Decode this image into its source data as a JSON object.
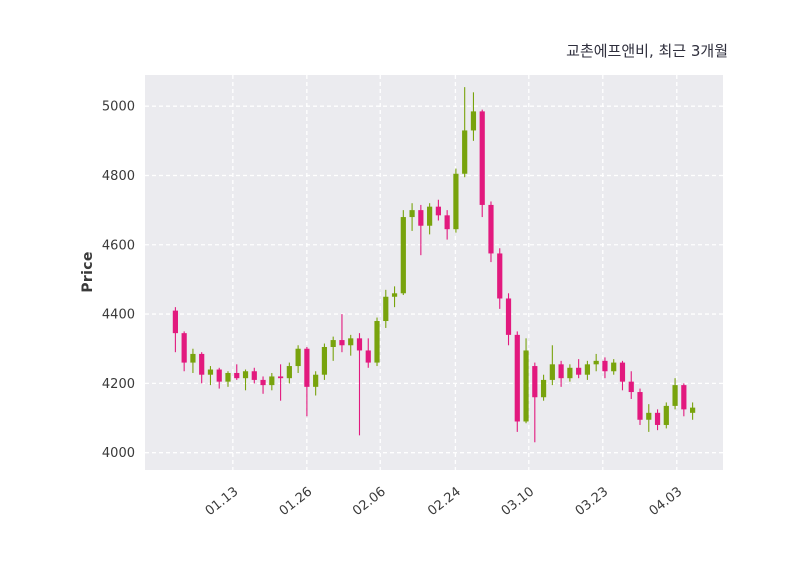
{
  "chart_data": {
    "type": "candlestick",
    "title": "교촌에프앤비, 최근 3개월",
    "ylabel": "Price",
    "ylim": [
      3950,
      5090
    ],
    "yticks": [
      4000,
      4200,
      4400,
      4600,
      4800,
      5000
    ],
    "xticks": [
      {
        "label": "01.13",
        "pos": 0.152
      },
      {
        "label": "01.26",
        "pos": 0.28
      },
      {
        "label": "02.06",
        "pos": 0.407
      },
      {
        "label": "02.24",
        "pos": 0.537
      },
      {
        "label": "03.10",
        "pos": 0.664
      },
      {
        "label": "03.23",
        "pos": 0.792
      },
      {
        "label": "04.03",
        "pos": 0.92
      }
    ],
    "grid": "dashed",
    "legend": "none",
    "colors": {
      "up": "#78A30D",
      "down": "#E2197E",
      "plot_bg": "#EBEBEF",
      "grid": "#FFFFFF",
      "tick_text": "#3A3A3A",
      "title_text": "#2F2F3D"
    },
    "candles_format": [
      "open",
      "high",
      "low",
      "close"
    ],
    "candles": [
      [
        4410,
        4420,
        4290,
        4345
      ],
      [
        4345,
        4350,
        4235,
        4260
      ],
      [
        4260,
        4300,
        4230,
        4285
      ],
      [
        4285,
        4290,
        4200,
        4225
      ],
      [
        4225,
        4250,
        4195,
        4240
      ],
      [
        4240,
        4245,
        4185,
        4205
      ],
      [
        4205,
        4235,
        4190,
        4230
      ],
      [
        4230,
        4255,
        4210,
        4215
      ],
      [
        4215,
        4240,
        4180,
        4235
      ],
      [
        4235,
        4245,
        4200,
        4210
      ],
      [
        4210,
        4220,
        4170,
        4195
      ],
      [
        4195,
        4230,
        4180,
        4220
      ],
      [
        4220,
        4255,
        4150,
        4215
      ],
      [
        4215,
        4260,
        4200,
        4250
      ],
      [
        4250,
        4310,
        4230,
        4300
      ],
      [
        4300,
        4305,
        4105,
        4190
      ],
      [
        4190,
        4235,
        4165,
        4225
      ],
      [
        4225,
        4315,
        4210,
        4305
      ],
      [
        4305,
        4335,
        4265,
        4325
      ],
      [
        4325,
        4400,
        4290,
        4310
      ],
      [
        4310,
        4340,
        4280,
        4330
      ],
      [
        4330,
        4345,
        4050,
        4295
      ],
      [
        4295,
        4330,
        4245,
        4260
      ],
      [
        4260,
        4390,
        4250,
        4380
      ],
      [
        4380,
        4470,
        4360,
        4450
      ],
      [
        4450,
        4480,
        4420,
        4460
      ],
      [
        4460,
        4700,
        4455,
        4680
      ],
      [
        4680,
        4720,
        4640,
        4700
      ],
      [
        4700,
        4715,
        4570,
        4655
      ],
      [
        4655,
        4720,
        4630,
        4710
      ],
      [
        4710,
        4730,
        4670,
        4685
      ],
      [
        4685,
        4700,
        4615,
        4645
      ],
      [
        4645,
        4820,
        4635,
        4805
      ],
      [
        4805,
        5055,
        4795,
        4930
      ],
      [
        4930,
        5040,
        4900,
        4985
      ],
      [
        4985,
        4990,
        4680,
        4715
      ],
      [
        4715,
        4725,
        4550,
        4575
      ],
      [
        4575,
        4590,
        4415,
        4445
      ],
      [
        4445,
        4460,
        4310,
        4340
      ],
      [
        4340,
        4350,
        4060,
        4090
      ],
      [
        4090,
        4330,
        4085,
        4295
      ],
      [
        4250,
        4260,
        4030,
        4160
      ],
      [
        4160,
        4225,
        4150,
        4210
      ],
      [
        4210,
        4310,
        4195,
        4255
      ],
      [
        4255,
        4265,
        4190,
        4215
      ],
      [
        4215,
        4255,
        4205,
        4245
      ],
      [
        4245,
        4270,
        4215,
        4225
      ],
      [
        4225,
        4265,
        4210,
        4255
      ],
      [
        4255,
        4285,
        4235,
        4265
      ],
      [
        4265,
        4275,
        4215,
        4235
      ],
      [
        4235,
        4270,
        4225,
        4260
      ],
      [
        4260,
        4265,
        4180,
        4205
      ],
      [
        4205,
        4235,
        4155,
        4175
      ],
      [
        4175,
        4185,
        4080,
        4095
      ],
      [
        4095,
        4140,
        4060,
        4115
      ],
      [
        4115,
        4125,
        4065,
        4080
      ],
      [
        4080,
        4145,
        4070,
        4135
      ],
      [
        4135,
        4215,
        4125,
        4195
      ],
      [
        4195,
        4200,
        4105,
        4125
      ],
      [
        4115,
        4145,
        4095,
        4130
      ]
    ]
  }
}
